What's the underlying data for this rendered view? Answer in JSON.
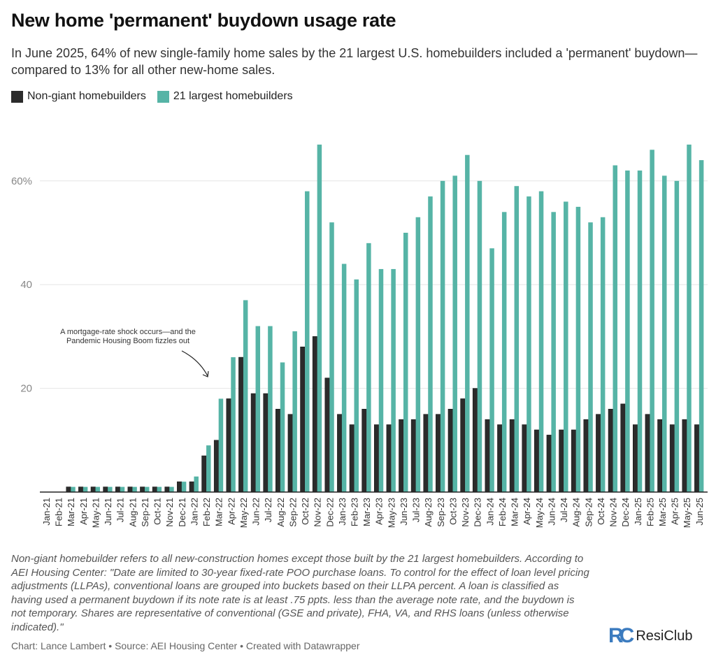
{
  "title": "New home 'permanent' buydown usage rate",
  "subtitle": "In June 2025, 64% of new single-family home sales by the 21 largest U.S. homebuilders included a 'permanent' buydown—compared to 13% for all other new-home sales.",
  "notes": "Non-giant homebuilder refers to all new-construction homes except those built by the 21 largest homebuilders. According to AEI Housing Center: \"Date are limited to 30-year fixed-rate POO purchase loans. To control for the effect of loan level pricing adjustments (LLPAs), conventional loans are grouped into buckets based on their LLPA percent. A loan is classified as having used a permanent buydown if its note rate is at least .75 ppts. less than the average note rate, and the buydown is not temporary. Shares are representative of conventional (GSE and private), FHA, VA, and RHS loans (unless otherwise indicated).\"",
  "credit": "Chart: Lance Lambert • Source: AEI Housing Center • Created with Datawrapper",
  "logo": {
    "mark": "RC",
    "text": "ResiClub"
  },
  "chart_data": {
    "type": "bar",
    "title": "New home 'permanent' buydown usage rate",
    "xlabel": "",
    "ylabel": "",
    "ylim": [
      0,
      70
    ],
    "yticks": [
      {
        "value": 20,
        "label": "20"
      },
      {
        "value": 40,
        "label": "40"
      },
      {
        "value": 60,
        "label": "60%"
      }
    ],
    "grid": true,
    "legend": "top-left",
    "annotation": "A mortgage-rate shock occurs—and the\nPandemic Housing Boom fizzles out",
    "categories": [
      "Jan-21",
      "Feb-21",
      "Mar-21",
      "Apr-21",
      "May-21",
      "Jun-21",
      "Jul-21",
      "Aug-21",
      "Sep-21",
      "Oct-21",
      "Nov-21",
      "Dec-21",
      "Jan-22",
      "Feb-22",
      "Mar-22",
      "Apr-22",
      "May-22",
      "Jun-22",
      "Jul-22",
      "Aug-22",
      "Sep-22",
      "Oct-22",
      "Nov-22",
      "Dec-22",
      "Jan-23",
      "Feb-23",
      "Mar-23",
      "Apr-23",
      "May-23",
      "Jun-23",
      "Jul-23",
      "Aug-23",
      "Sep-23",
      "Oct-23",
      "Nov-23",
      "Dec-23",
      "Jan-24",
      "Feb-24",
      "Mar-24",
      "Apr-24",
      "May-24",
      "Jun-24",
      "Jul-24",
      "Aug-24",
      "Sep-24",
      "Oct-24",
      "Nov-24",
      "Dec-24",
      "Jan-25",
      "Feb-25",
      "Mar-25",
      "Apr-25",
      "May-25",
      "Jun-25"
    ],
    "series": [
      {
        "name": "Non-giant homebuilders",
        "color": "#2b2b2b",
        "values": [
          0,
          0,
          1,
          1,
          1,
          1,
          1,
          1,
          1,
          1,
          1,
          2,
          2,
          7,
          10,
          18,
          26,
          19,
          19,
          16,
          15,
          28,
          30,
          22,
          15,
          13,
          16,
          13,
          13,
          14,
          14,
          15,
          15,
          16,
          18,
          20,
          14,
          13,
          14,
          13,
          12,
          11,
          12,
          12,
          14,
          15,
          16,
          17,
          13,
          15,
          14,
          13,
          14,
          13
        ]
      },
      {
        "name": "21 largest homebuilders",
        "color": "#56b4a6",
        "values": [
          0,
          0,
          1,
          1,
          1,
          1,
          1,
          1,
          1,
          1,
          1,
          2,
          3,
          9,
          18,
          26,
          37,
          32,
          32,
          25,
          31,
          58,
          67,
          52,
          44,
          41,
          48,
          43,
          43,
          50,
          53,
          57,
          60,
          61,
          65,
          60,
          47,
          54,
          59,
          57,
          58,
          54,
          56,
          55,
          52,
          53,
          63,
          62,
          62,
          66,
          61,
          60,
          67,
          64
        ]
      }
    ]
  }
}
